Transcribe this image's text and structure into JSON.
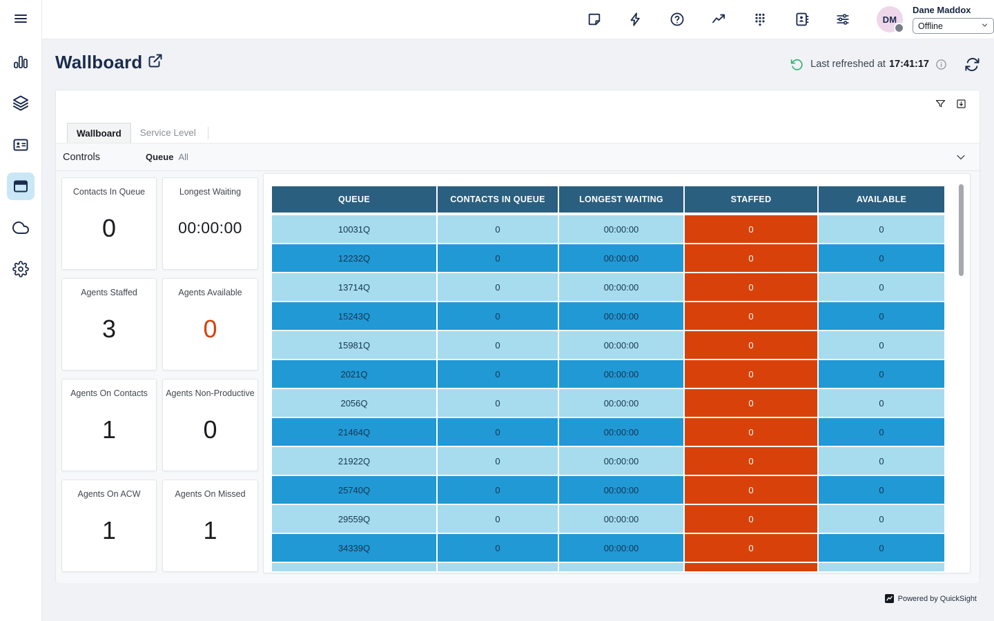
{
  "topbar": {
    "icons": [
      {
        "name": "topbar-notes-button",
        "icon": "note-icon"
      },
      {
        "name": "topbar-shortcuts-button",
        "icon": "lightning-icon"
      },
      {
        "name": "topbar-help-button",
        "icon": "help-icon"
      },
      {
        "name": "topbar-analytics-button",
        "icon": "line-chart-icon"
      },
      {
        "name": "topbar-dialpad-button",
        "icon": "dialpad-icon"
      },
      {
        "name": "topbar-directory-button",
        "icon": "address-book-icon"
      },
      {
        "name": "topbar-preferences-button",
        "icon": "sliders-icon"
      }
    ],
    "user": {
      "name": "Dane Maddox",
      "initials": "DM",
      "status": "Offline"
    }
  },
  "sidebar": {
    "items": [
      {
        "name": "sidebar-menu-button",
        "icon": "menu-icon",
        "active": false
      },
      {
        "name": "sidebar-item-metrics",
        "icon": "bar-chart-icon",
        "active": false
      },
      {
        "name": "sidebar-item-layers",
        "icon": "layers-icon",
        "active": false
      },
      {
        "name": "sidebar-item-contacts",
        "icon": "id-card-icon",
        "active": false
      },
      {
        "name": "sidebar-item-wallboard",
        "icon": "browser-window-icon",
        "active": true
      },
      {
        "name": "sidebar-item-cloud",
        "icon": "cloud-icon",
        "active": false
      },
      {
        "name": "sidebar-item-settings",
        "icon": "gear-icon",
        "active": false
      }
    ]
  },
  "page": {
    "title": "Wallboard",
    "refresh": {
      "label": "Last refreshed at",
      "time": "17:41:17"
    }
  },
  "panel": {
    "tabs": [
      {
        "label": "Wallboard",
        "active": true
      },
      {
        "label": "Service Level",
        "active": false
      }
    ],
    "controls": {
      "title": "Controls",
      "queue_label": "Queue",
      "queue_value": "All"
    }
  },
  "kpis": [
    {
      "label": "Contacts In Queue",
      "value": "0",
      "accent": false
    },
    {
      "label": "Longest Waiting",
      "value": "00:00:00",
      "accent": false
    },
    {
      "label": "Agents Staffed",
      "value": "3",
      "accent": false
    },
    {
      "label": "Agents Available",
      "value": "0",
      "accent": true
    },
    {
      "label": "Agents On Contacts",
      "value": "1",
      "accent": false
    },
    {
      "label": "Agents Non-Productive",
      "value": "0",
      "accent": false
    },
    {
      "label": "Agents On ACW",
      "value": "1",
      "accent": false
    },
    {
      "label": "Agents On Missed",
      "value": "1",
      "accent": false
    }
  ],
  "table": {
    "columns": [
      "QUEUE",
      "CONTACTS IN QUEUE",
      "LONGEST WAITING",
      "STAFFED",
      "AVAILABLE"
    ],
    "rows": [
      {
        "queue": "10031Q",
        "contacts_in_queue": "0",
        "longest_waiting": "00:00:00",
        "staffed": "0",
        "available": "0"
      },
      {
        "queue": "12232Q",
        "contacts_in_queue": "0",
        "longest_waiting": "00:00:00",
        "staffed": "0",
        "available": "0"
      },
      {
        "queue": "13714Q",
        "contacts_in_queue": "0",
        "longest_waiting": "00:00:00",
        "staffed": "0",
        "available": "0"
      },
      {
        "queue": "15243Q",
        "contacts_in_queue": "0",
        "longest_waiting": "00:00:00",
        "staffed": "0",
        "available": "0"
      },
      {
        "queue": "15981Q",
        "contacts_in_queue": "0",
        "longest_waiting": "00:00:00",
        "staffed": "0",
        "available": "0"
      },
      {
        "queue": "2021Q",
        "contacts_in_queue": "0",
        "longest_waiting": "00:00:00",
        "staffed": "0",
        "available": "0"
      },
      {
        "queue": "2056Q",
        "contacts_in_queue": "0",
        "longest_waiting": "00:00:00",
        "staffed": "0",
        "available": "0"
      },
      {
        "queue": "21464Q",
        "contacts_in_queue": "0",
        "longest_waiting": "00:00:00",
        "staffed": "0",
        "available": "0"
      },
      {
        "queue": "21922Q",
        "contacts_in_queue": "0",
        "longest_waiting": "00:00:00",
        "staffed": "0",
        "available": "0"
      },
      {
        "queue": "25740Q",
        "contacts_in_queue": "0",
        "longest_waiting": "00:00:00",
        "staffed": "0",
        "available": "0"
      },
      {
        "queue": "29559Q",
        "contacts_in_queue": "0",
        "longest_waiting": "00:00:00",
        "staffed": "0",
        "available": "0"
      },
      {
        "queue": "34339Q",
        "contacts_in_queue": "0",
        "longest_waiting": "00:00:00",
        "staffed": "0",
        "available": "0"
      }
    ],
    "partial_row_visible": true
  },
  "footer": {
    "powered_by": "Powered by QuickSight"
  },
  "colors": {
    "navy": "#1b2b4d",
    "table_header": "#2a5f80",
    "row_light": "#a6dcee",
    "row_blue": "#2199d5",
    "staffed_orange": "#d8420a",
    "kpi_accent_orange": "#d6420a",
    "refresh_green": "#2db06b",
    "active_sidebar_bg": "#c9e7f6"
  }
}
